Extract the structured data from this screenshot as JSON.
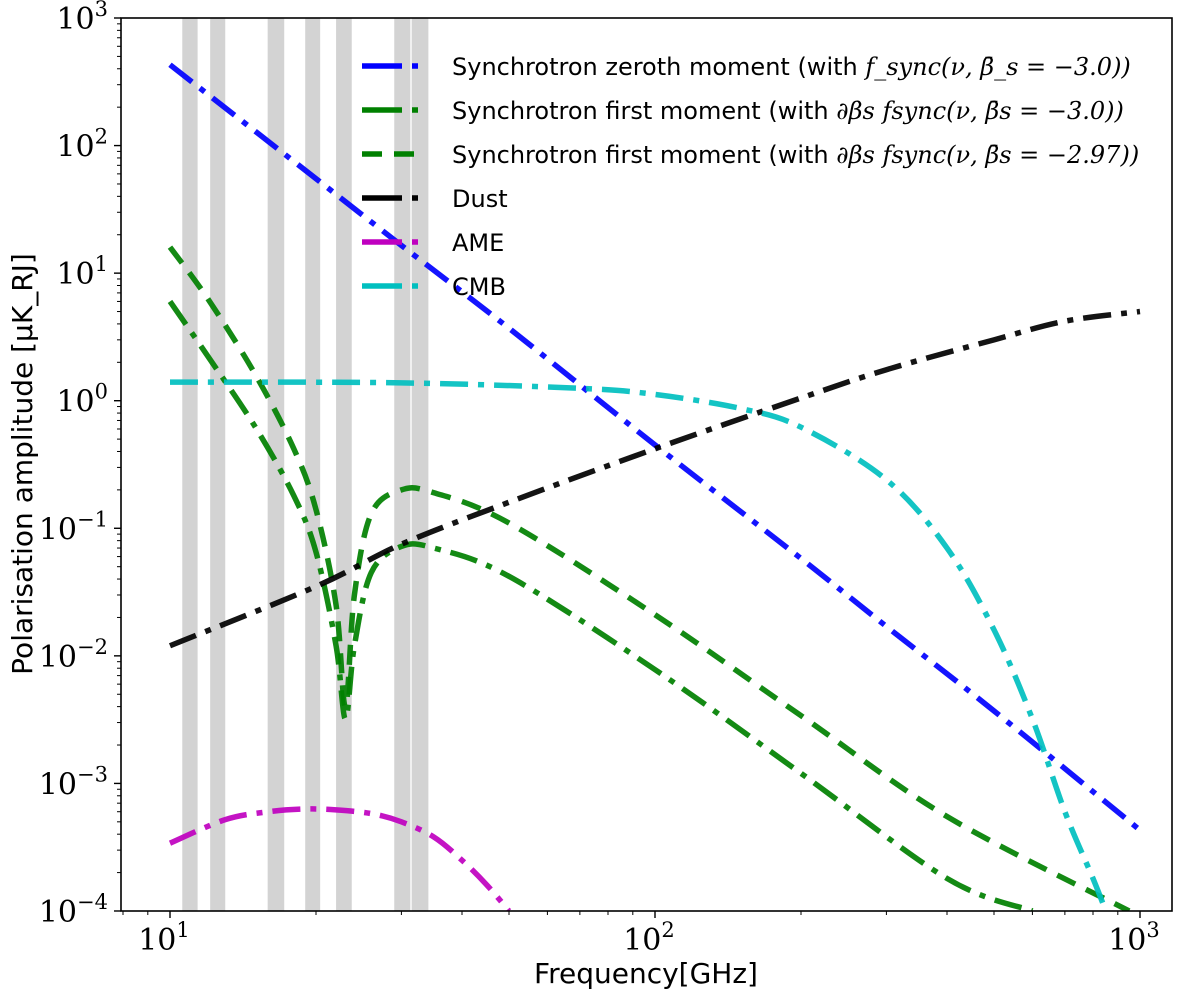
{
  "chart_data": {
    "type": "line",
    "title": "",
    "xlabel": "Frequency[GHz]",
    "ylabel": "Polarisation amplitude [μK_RJ]",
    "xscale": "log",
    "yscale": "log",
    "xlim": [
      8,
      1250
    ],
    "ylim": [
      0.0001,
      1000
    ],
    "grid": false,
    "legend_position": "upper center",
    "x_ticks": [
      {
        "value": 10,
        "base": "10",
        "exp": "1"
      },
      {
        "value": 100,
        "base": "10",
        "exp": "2"
      },
      {
        "value": 1000,
        "base": "10",
        "exp": "3"
      }
    ],
    "y_ticks": [
      {
        "value": 1000,
        "base": "10",
        "exp": "3"
      },
      {
        "value": 100,
        "base": "10",
        "exp": "2"
      },
      {
        "value": 10,
        "base": "10",
        "exp": "1"
      },
      {
        "value": 1,
        "base": "10",
        "exp": "0"
      },
      {
        "value": 0.1,
        "base": "10",
        "exp": "−1"
      },
      {
        "value": 0.01,
        "base": "10",
        "exp": "−2"
      },
      {
        "value": 0.001,
        "base": "10",
        "exp": "−3"
      },
      {
        "value": 0.0001,
        "base": "10",
        "exp": "−4"
      }
    ],
    "shaded_bands_GHz": [
      [
        10.6,
        11.4
      ],
      [
        12.1,
        13.0
      ],
      [
        15.9,
        17.2
      ],
      [
        19.0,
        20.4
      ],
      [
        22.0,
        23.7
      ],
      [
        29.0,
        31.3
      ],
      [
        31.5,
        34.1
      ]
    ],
    "band_color": "#d3d3d3",
    "series": [
      {
        "name": "Synchrotron zeroth moment (with f_sync(ν, β̄_s = −3.0))",
        "legend_plain": "Synchrotron zeroth moment (with ",
        "legend_math": "f_sync(ν, β̄_s = −3.0))",
        "color": "#0000ff",
        "style": "dashdot",
        "x": [
          10,
          20,
          30,
          50,
          100,
          200,
          300,
          500,
          1000
        ],
        "y": [
          430,
          55,
          16.5,
          3.7,
          0.45,
          0.058,
          0.017,
          0.0037,
          0.00043
        ]
      },
      {
        "name": "Synchrotron first moment (with ∂_βs f_sync(ν, β̄_s = −3.0))",
        "legend_plain": "Synchrotron first moment (with ",
        "legend_math": "∂βs fsync(ν, β̄s = −3.0))",
        "color": "#008000",
        "style": "dashdot",
        "x": [
          10,
          12,
          15,
          18,
          20,
          22,
          23,
          24,
          26,
          30,
          35,
          50,
          100,
          200,
          400,
          600
        ],
        "y": [
          6.0,
          2.2,
          0.62,
          0.18,
          0.065,
          0.012,
          0.0032,
          0.012,
          0.045,
          0.072,
          0.07,
          0.042,
          0.0078,
          0.0012,
          0.00018,
          0.0001
        ]
      },
      {
        "name": "Synchrotron first moment (with ∂_βs f_sync(ν, β̄_s = −2.97))",
        "legend_plain": "Synchrotron first moment (with ",
        "legend_math": "∂βs fsync(ν, β̄s = −2.97))",
        "color": "#008000",
        "style": "dashed",
        "x": [
          10,
          12,
          15,
          18,
          20,
          22,
          23,
          24,
          26,
          30,
          35,
          50,
          100,
          200,
          400,
          950
        ],
        "y": [
          16,
          6.2,
          1.6,
          0.42,
          0.14,
          0.025,
          0.004,
          0.03,
          0.13,
          0.2,
          0.19,
          0.11,
          0.021,
          0.0034,
          0.00055,
          0.0001
        ]
      },
      {
        "name": "Dust",
        "legend_plain": "Dust",
        "color": "#000000",
        "style": "dashdot",
        "x": [
          10,
          20,
          30,
          50,
          100,
          200,
          300,
          500,
          700,
          1000
        ],
        "y": [
          0.012,
          0.035,
          0.075,
          0.16,
          0.42,
          1.05,
          1.75,
          3.0,
          4.2,
          5.0
        ]
      },
      {
        "name": "AME",
        "legend_plain": "AME",
        "color": "#bf00bf",
        "style": "dashdot",
        "x": [
          10,
          13,
          16,
          19,
          22,
          26,
          30,
          35,
          40,
          45,
          50
        ],
        "y": [
          0.00034,
          0.00052,
          0.0006,
          0.00063,
          0.00062,
          0.00058,
          0.0005,
          0.00038,
          0.00025,
          0.00016,
          0.0001
        ]
      },
      {
        "name": "CMB",
        "legend_plain": "CMB",
        "color": "#00bfbf",
        "style": "dashdot",
        "x": [
          10,
          30,
          70,
          100,
          150,
          200,
          300,
          400,
          500,
          600,
          700,
          800,
          850
        ],
        "y": [
          1.4,
          1.38,
          1.25,
          1.12,
          0.87,
          0.62,
          0.24,
          0.07,
          0.016,
          0.0032,
          0.0006,
          0.00018,
          0.0001
        ]
      }
    ]
  }
}
